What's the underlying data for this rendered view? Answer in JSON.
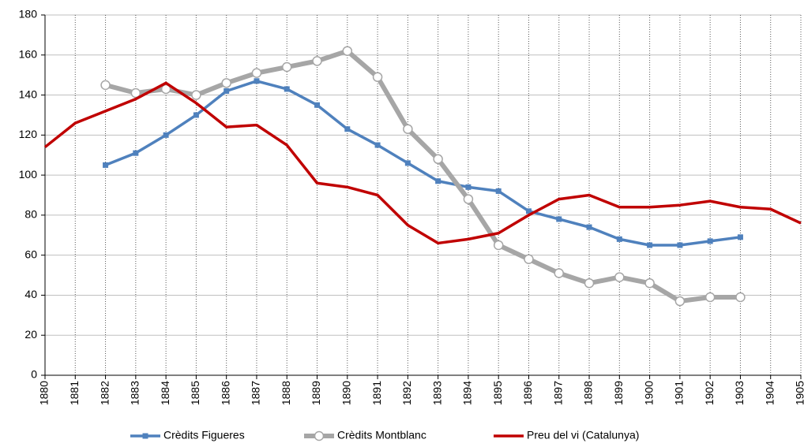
{
  "chart_data": {
    "type": "line",
    "x": [
      1880,
      1881,
      1882,
      1883,
      1884,
      1885,
      1886,
      1887,
      1888,
      1889,
      1890,
      1891,
      1892,
      1893,
      1894,
      1895,
      1896,
      1897,
      1898,
      1899,
      1900,
      1901,
      1902,
      1903,
      1904,
      1905
    ],
    "series": [
      {
        "name": "Crèdits Figueres",
        "color": "#4f81bd",
        "marker": "square",
        "values": [
          null,
          null,
          105,
          111,
          120,
          130,
          142,
          147,
          143,
          135,
          123,
          115,
          106,
          97,
          94,
          92,
          82,
          78,
          74,
          68,
          65,
          65,
          67,
          69,
          null,
          null
        ]
      },
      {
        "name": "Crèdits Montblanc",
        "color": "#a6a6a6",
        "marker": "circle",
        "values": [
          null,
          null,
          145,
          141,
          143,
          140,
          146,
          151,
          154,
          157,
          162,
          149,
          123,
          108,
          88,
          65,
          58,
          51,
          46,
          49,
          46,
          37,
          39,
          39,
          null,
          null
        ]
      },
      {
        "name": "Preu del vi (Catalunya)",
        "color": "#c00000",
        "marker": "none",
        "values": [
          114,
          126,
          132,
          138,
          146,
          136,
          124,
          125,
          115,
          96,
          94,
          90,
          75,
          66,
          68,
          71,
          80,
          88,
          90,
          84,
          84,
          85,
          87,
          84,
          83,
          76
        ]
      }
    ],
    "xlim": [
      1880,
      1905
    ],
    "xticks": [
      1880,
      1881,
      1882,
      1883,
      1884,
      1885,
      1886,
      1887,
      1888,
      1889,
      1890,
      1891,
      1892,
      1893,
      1894,
      1895,
      1896,
      1897,
      1898,
      1899,
      1900,
      1901,
      1902,
      1903,
      1904,
      1905
    ],
    "ylim": [
      0,
      180
    ],
    "yticks": [
      0,
      20,
      40,
      60,
      80,
      100,
      120,
      140,
      160,
      180
    ],
    "grid": true,
    "legend": "bottom"
  }
}
